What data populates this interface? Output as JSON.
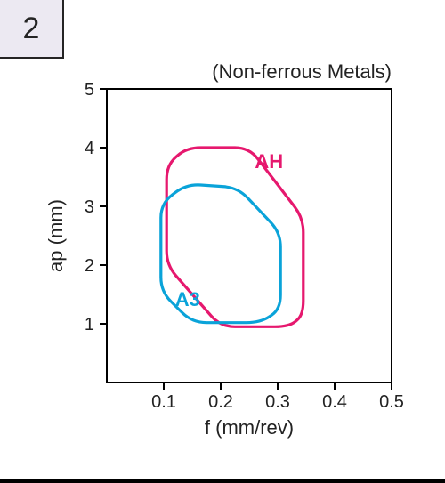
{
  "badge": {
    "number": "2"
  },
  "chart": {
    "type": "scatter-region",
    "title": "(Non-ferrous Metals)",
    "title_fontsize": 22,
    "title_color": "#222222",
    "xlabel": "f (mm/rev)",
    "ylabel": "ap (mm)",
    "label_fontsize": 22,
    "label_color": "#222222",
    "xlim": [
      0,
      0.5
    ],
    "ylim": [
      0,
      5
    ],
    "xticks": [
      0.1,
      0.2,
      0.3,
      0.4,
      0.5
    ],
    "yticks": [
      1,
      2,
      3,
      4,
      5
    ],
    "tick_fontsize": 20,
    "tick_color": "#222222",
    "frame_color": "#000000",
    "frame_width": 2,
    "background_color": "#ffffff",
    "series": [
      {
        "name": "AH",
        "label": "AH",
        "label_pos": {
          "x": 0.26,
          "y": 3.65
        },
        "label_fontsize": 22,
        "color": "#e6186e",
        "line_width": 3.2,
        "fill": "none",
        "points": [
          {
            "x": 0.105,
            "y": 2.0
          },
          {
            "x": 0.105,
            "y": 3.7
          },
          {
            "x": 0.14,
            "y": 4.0
          },
          {
            "x": 0.25,
            "y": 4.0
          },
          {
            "x": 0.345,
            "y": 2.8
          },
          {
            "x": 0.345,
            "y": 1.15
          },
          {
            "x": 0.32,
            "y": 0.95
          },
          {
            "x": 0.2,
            "y": 0.95
          },
          {
            "x": 0.105,
            "y": 2.0
          }
        ]
      },
      {
        "name": "A3",
        "label": "A3",
        "label_pos": {
          "x": 0.12,
          "y": 1.3
        },
        "label_fontsize": 22,
        "color": "#0aa3d9",
        "line_width": 3.2,
        "fill": "none",
        "points": [
          {
            "x": 0.095,
            "y": 1.55
          },
          {
            "x": 0.095,
            "y": 3.05
          },
          {
            "x": 0.14,
            "y": 3.38
          },
          {
            "x": 0.23,
            "y": 3.32
          },
          {
            "x": 0.305,
            "y": 2.55
          },
          {
            "x": 0.305,
            "y": 1.25
          },
          {
            "x": 0.27,
            "y": 1.02
          },
          {
            "x": 0.15,
            "y": 1.02
          },
          {
            "x": 0.095,
            "y": 1.55
          }
        ]
      }
    ]
  }
}
